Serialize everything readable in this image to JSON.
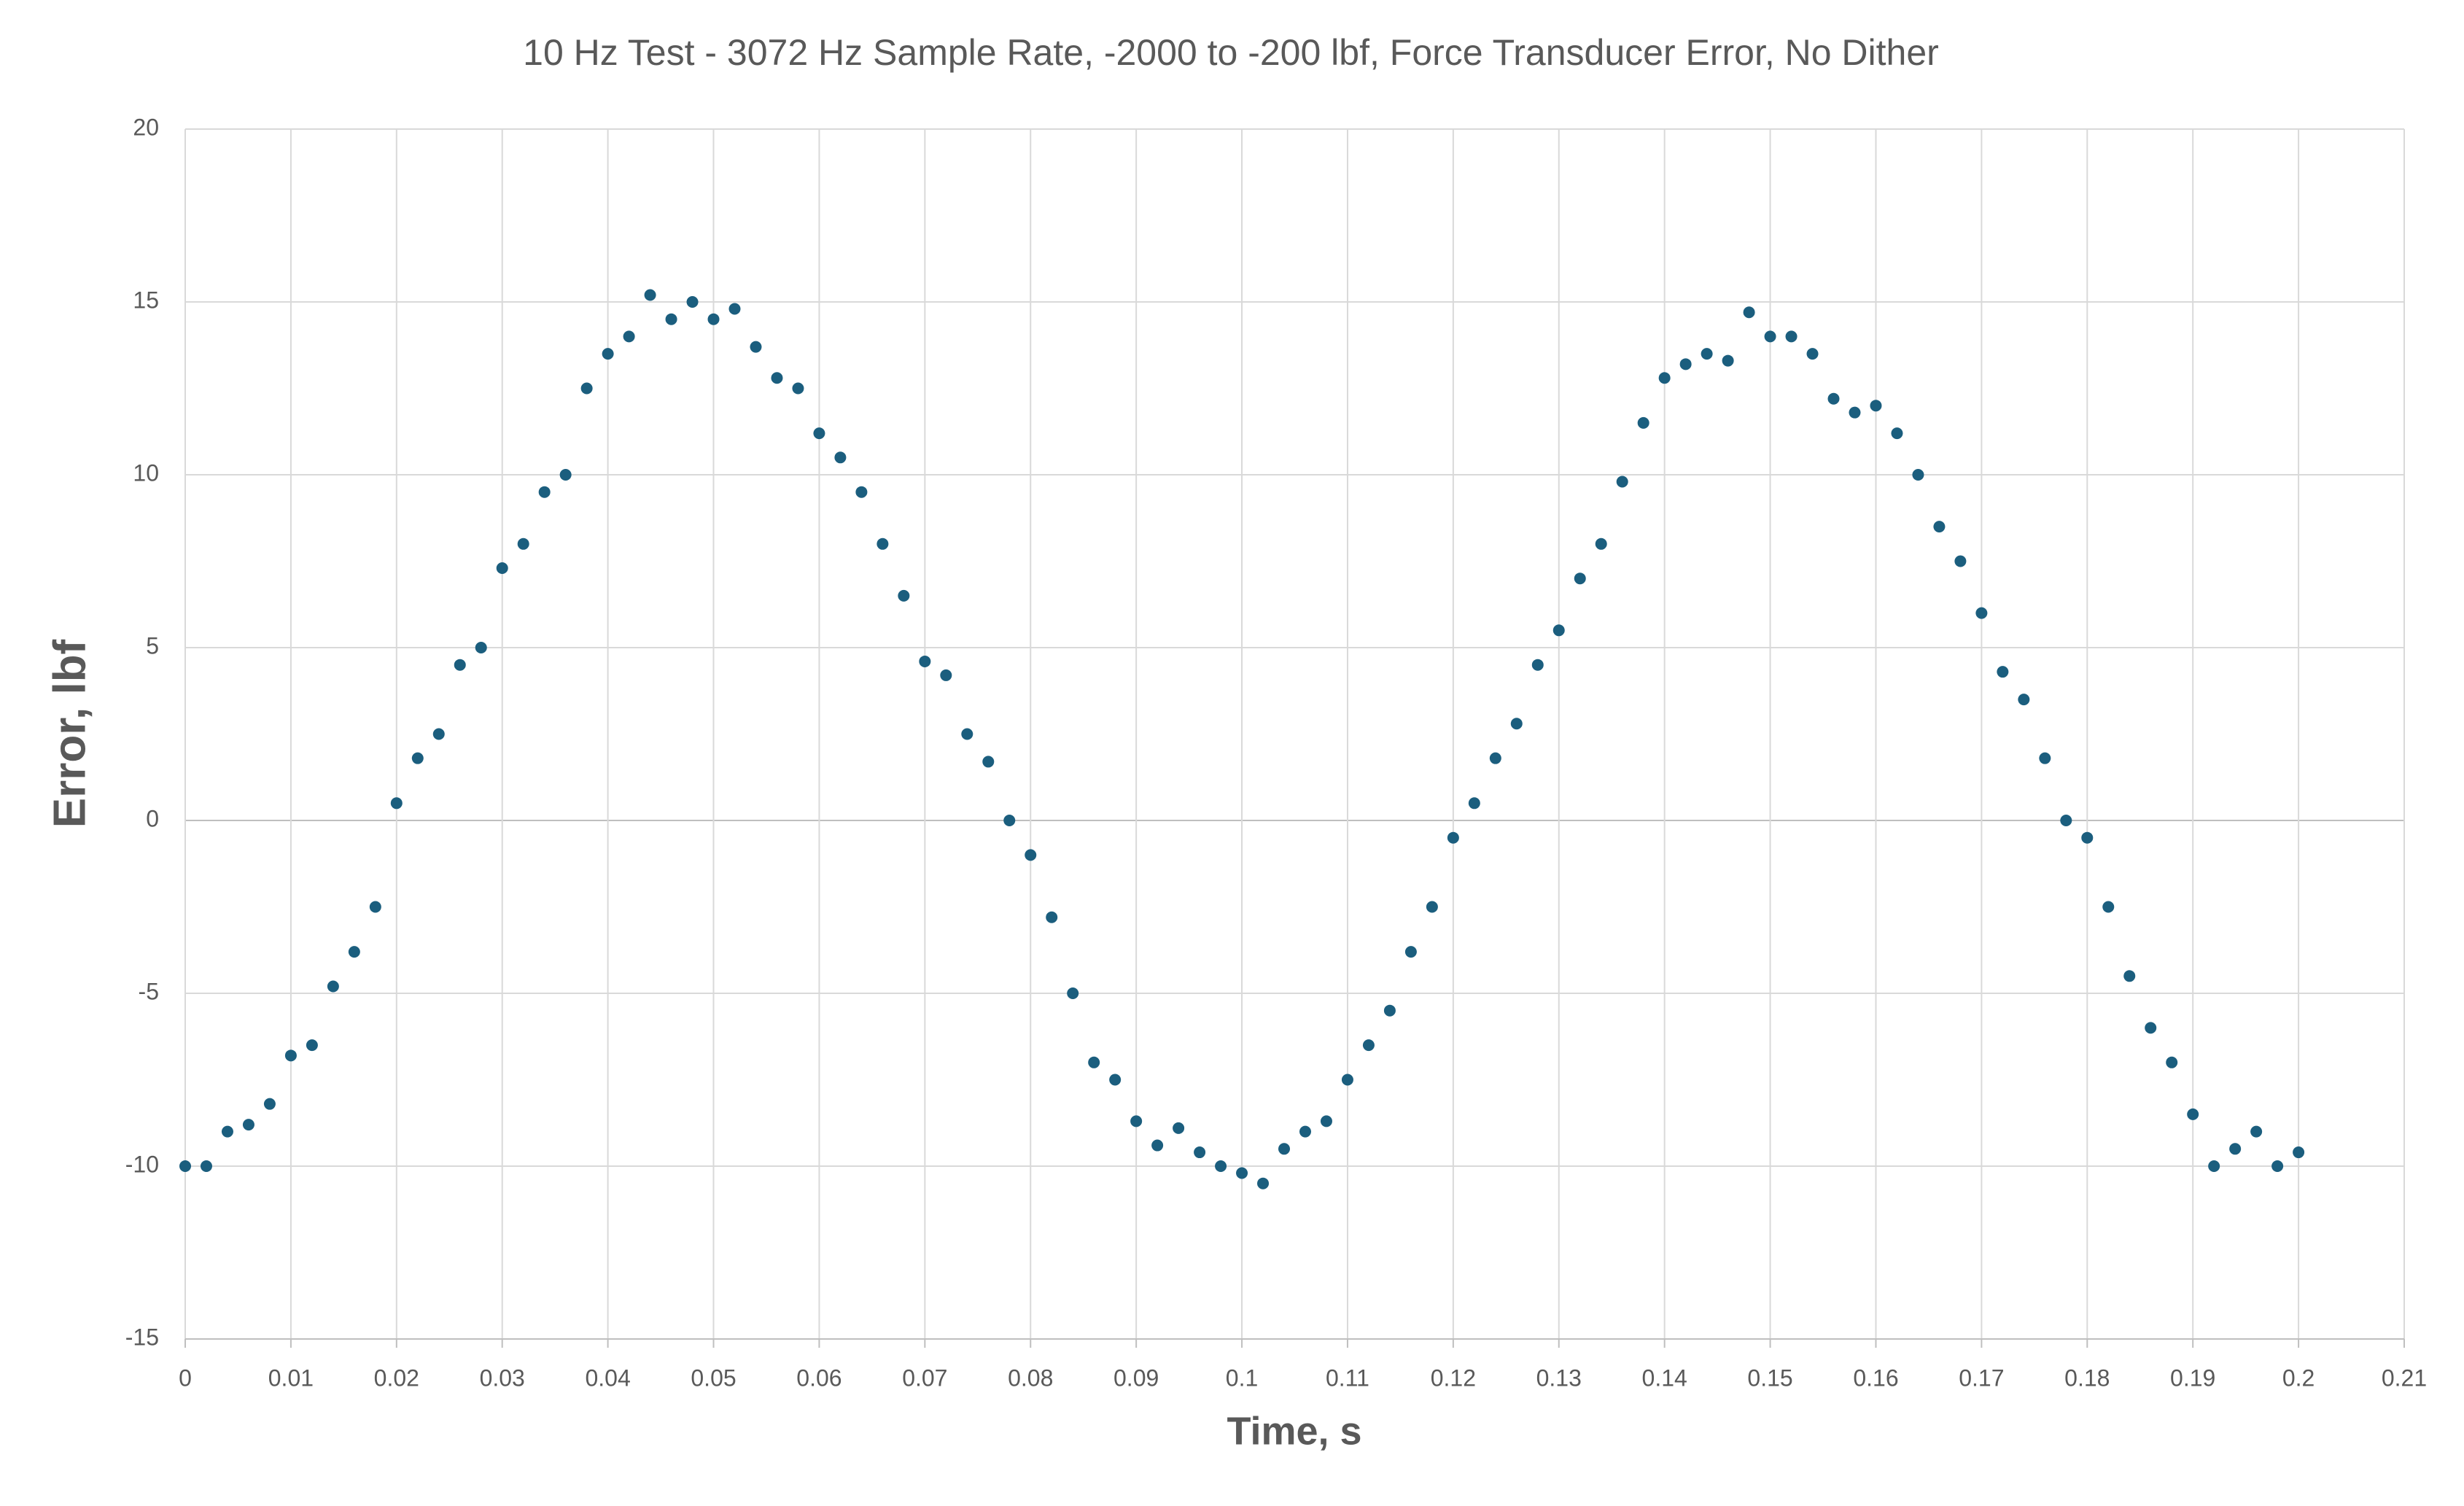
{
  "chart_data": {
    "type": "scatter",
    "title": "10 Hz Test - 3072 Hz Sample Rate, -2000 to -200 lbf, Force Transducer Error, No Dither",
    "x_label": "Time, s",
    "y_label": "Error, lbf",
    "x": [
      0,
      0.002,
      0.004,
      0.006,
      0.008,
      0.01,
      0.012,
      0.014,
      0.016,
      0.018,
      0.02,
      0.022,
      0.024,
      0.026,
      0.028,
      0.03,
      0.032,
      0.034,
      0.036,
      0.038,
      0.04,
      0.042,
      0.044,
      0.046,
      0.048,
      0.05,
      0.052,
      0.054,
      0.056,
      0.058,
      0.06,
      0.062,
      0.064,
      0.066,
      0.068,
      0.07,
      0.072,
      0.074,
      0.076,
      0.078,
      0.08,
      0.082,
      0.084,
      0.086,
      0.088,
      0.09,
      0.092,
      0.094,
      0.096,
      0.098,
      0.1,
      0.102,
      0.104,
      0.106,
      0.108,
      0.11,
      0.112,
      0.114,
      0.116,
      0.118,
      0.12,
      0.122,
      0.124,
      0.126,
      0.128,
      0.13,
      0.132,
      0.134,
      0.136,
      0.138,
      0.14,
      0.142,
      0.144,
      0.146,
      0.148,
      0.15,
      0.152,
      0.154,
      0.156,
      0.158,
      0.16,
      0.162,
      0.164,
      0.166,
      0.168,
      0.17,
      0.172,
      0.174,
      0.176,
      0.178,
      0.18,
      0.182,
      0.184,
      0.186,
      0.188,
      0.19,
      0.192,
      0.194,
      0.196,
      0.198,
      0.2
    ],
    "series": [
      {
        "name": "Error",
        "color": "#1b5e7e",
        "values": [
          -10,
          -10,
          -9,
          -8.8,
          -8.2,
          -6.8,
          -6.5,
          -4.8,
          -3.8,
          -2.5,
          0.5,
          1.8,
          2.5,
          4.5,
          5,
          7.3,
          8,
          9.5,
          10,
          12.5,
          13.5,
          14,
          15.2,
          14.5,
          15,
          14.5,
          14.8,
          13.7,
          12.8,
          12.5,
          11.2,
          10.5,
          9.5,
          8,
          6.5,
          4.6,
          4.2,
          2.5,
          1.7,
          0,
          -1,
          -2.8,
          -5,
          -7,
          -7.5,
          -8.7,
          -9.4,
          -8.9,
          -9.6,
          -10,
          -10.2,
          -10.5,
          -9.5,
          -9,
          -8.7,
          -7.5,
          -6.5,
          -5.5,
          -3.8,
          -2.5,
          -0.5,
          0.5,
          1.8,
          2.8,
          4.5,
          5.5,
          7,
          8,
          9.8,
          11.5,
          12.8,
          13.2,
          13.5,
          13.3,
          14.7,
          14,
          14,
          13.5,
          12.2,
          11.8,
          12,
          11.2,
          10,
          8.5,
          7.5,
          6,
          4.3,
          3.5,
          1.8,
          0,
          -0.5,
          -2.5,
          -4.5,
          -6,
          -7,
          -8.5,
          -10,
          -9.5,
          -9,
          -10,
          -9.6
        ]
      }
    ],
    "xlim": [
      0,
      0.21
    ],
    "xticks": [
      0,
      0.01,
      0.02,
      0.03,
      0.04,
      0.05,
      0.06,
      0.07,
      0.08,
      0.09,
      0.1,
      0.11,
      0.12,
      0.13,
      0.14,
      0.15,
      0.16,
      0.17,
      0.18,
      0.19,
      0.2,
      0.21
    ],
    "ylim": [
      -15,
      20
    ],
    "yticks": [
      -15,
      -10,
      -5,
      0,
      5,
      10,
      15,
      20
    ],
    "grid": true
  }
}
